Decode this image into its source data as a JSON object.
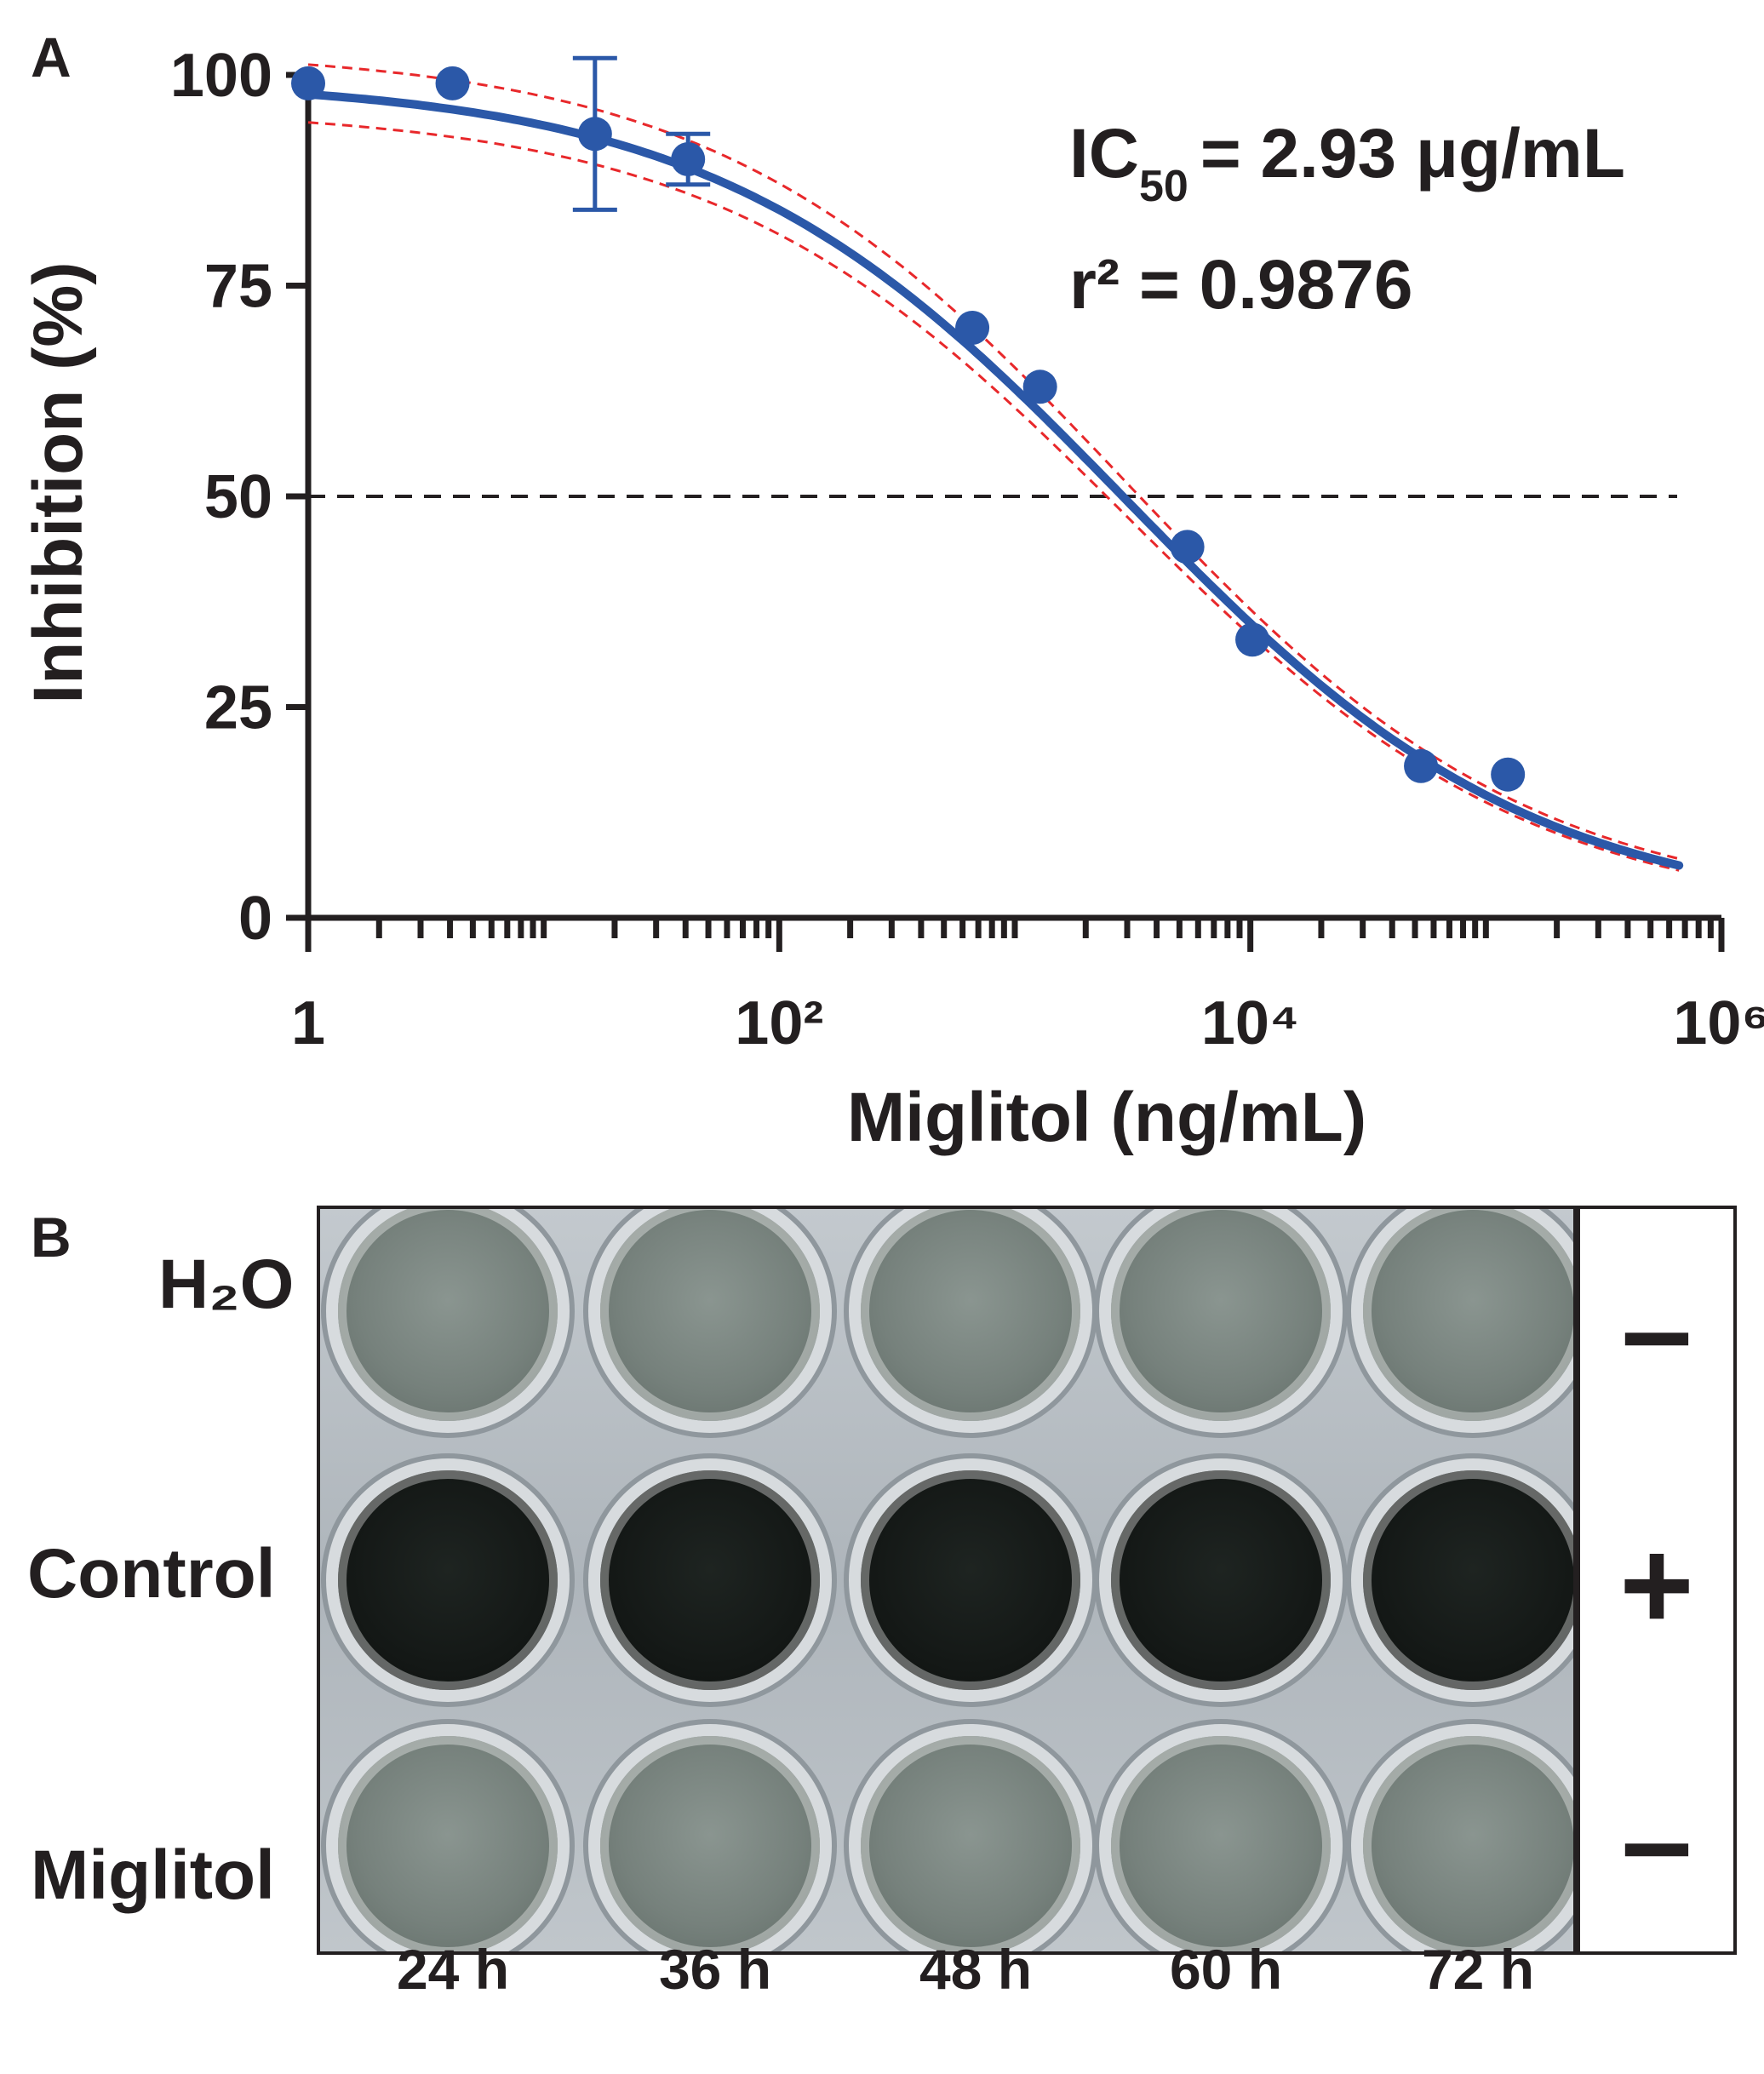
{
  "panelA": {
    "letter": "A",
    "chart_data": {
      "type": "scatter",
      "xscale": "log",
      "xlim": [
        1,
        1000000
      ],
      "ylim": [
        0,
        100
      ],
      "xlabel": "Miglitol (ng/mL)",
      "ylabel": "Inhibition (%)",
      "x_ticks": [
        "1",
        "10²",
        "10⁴",
        "10⁶"
      ],
      "y_ticks": [
        "0",
        "25",
        "50",
        "75",
        "100"
      ],
      "series": [
        {
          "points": [
            {
              "x": 1,
              "y": 99,
              "err": 0
            },
            {
              "x": 4.1,
              "y": 99,
              "err": 0
            },
            {
              "x": 16.5,
              "y": 93,
              "err": 9
            },
            {
              "x": 41,
              "y": 90,
              "err": 3
            },
            {
              "x": 660,
              "y": 70,
              "err": 0
            },
            {
              "x": 1280,
              "y": 63,
              "err": 0
            },
            {
              "x": 5400,
              "y": 44,
              "err": 0
            },
            {
              "x": 10200,
              "y": 33,
              "err": 0
            },
            {
              "x": 53000,
              "y": 18,
              "err": 0
            },
            {
              "x": 124000,
              "y": 17,
              "err": 0
            }
          ]
        }
      ],
      "fit": {
        "top": 99.5,
        "bottom": 0,
        "logEC50": 3.467,
        "hill": 0.5
      },
      "reference_line_y": 50,
      "colors": {
        "points": "#2b58a8",
        "fit": "#2b58a8",
        "ci": "#e8282b",
        "ref": "#231f20"
      },
      "annotations": {
        "ic50_prefix": "IC",
        "ic50_sub": "50",
        "ic50_value": "= 2.93 μg/mL",
        "r2_text": "r² = 0.9876"
      }
    }
  },
  "panelB": {
    "letter": "B",
    "rows": [
      {
        "label": "H₂O",
        "sign": "–",
        "tone": "light"
      },
      {
        "label": "Control",
        "sign": "+",
        "tone": "dark"
      },
      {
        "label": "Miglitol",
        "sign": "–",
        "tone": "light"
      }
    ],
    "times": [
      "24 h",
      "36 h",
      "48 h",
      "60 h",
      "72 h"
    ]
  }
}
